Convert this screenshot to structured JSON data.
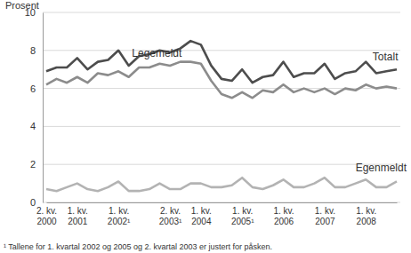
{
  "chart_data": {
    "type": "line",
    "y_label": "Prosent",
    "footnote": "¹ Tallene for 1. kvartal 2002 og 2005 og 2. kvartal 2003 er justert for påsken.",
    "categories": [
      "2. kv. 2000",
      null,
      null,
      "1. kv. 2001",
      null,
      null,
      null,
      "1. kv. 2002¹",
      null,
      null,
      null,
      null,
      "2. kv. 2003¹",
      null,
      null,
      "1. kv. 2004",
      null,
      null,
      null,
      "1. kv. 2005¹",
      null,
      null,
      null,
      "1. kv. 2006",
      null,
      null,
      null,
      "1. kv. 2007",
      null,
      null,
      null,
      "1. kv. 2008",
      null,
      null,
      null
    ],
    "series": [
      {
        "name": "Totalt",
        "color": "#4d4d4d",
        "values": [
          6.9,
          7.1,
          7.1,
          7.6,
          7.0,
          7.4,
          7.5,
          8.0,
          7.2,
          7.7,
          7.8,
          8.0,
          7.9,
          8.1,
          8.5,
          8.3,
          7.2,
          6.5,
          6.4,
          7.0,
          6.3,
          6.6,
          6.7,
          7.4,
          6.6,
          6.8,
          6.8,
          7.3,
          6.5,
          6.8,
          6.9,
          7.4,
          6.8,
          6.9,
          7.0
        ]
      },
      {
        "name": "Legemeldt",
        "color": "#8c8c8c",
        "values": [
          6.2,
          6.5,
          6.3,
          6.6,
          6.3,
          6.8,
          6.7,
          6.9,
          6.6,
          7.1,
          7.1,
          7.3,
          7.2,
          7.4,
          7.4,
          7.3,
          6.4,
          5.7,
          5.5,
          5.8,
          5.5,
          5.9,
          5.8,
          6.2,
          5.8,
          6.0,
          5.8,
          6.0,
          5.7,
          6.0,
          5.9,
          6.2,
          6.0,
          6.1,
          6.0
        ]
      },
      {
        "name": "Egenmeldt",
        "color": "#b3b3b3",
        "values": [
          0.7,
          0.6,
          0.8,
          1.0,
          0.7,
          0.6,
          0.8,
          1.1,
          0.6,
          0.6,
          0.7,
          1.0,
          0.7,
          0.7,
          1.0,
          1.0,
          0.8,
          0.8,
          0.9,
          1.3,
          0.8,
          0.7,
          0.9,
          1.2,
          0.8,
          0.8,
          1.0,
          1.3,
          0.8,
          0.8,
          1.0,
          1.2,
          0.8,
          0.8,
          1.1
        ]
      }
    ],
    "ylim": [
      0,
      10
    ],
    "yticks": [
      0,
      2,
      4,
      6,
      8,
      10
    ],
    "grid": true
  }
}
